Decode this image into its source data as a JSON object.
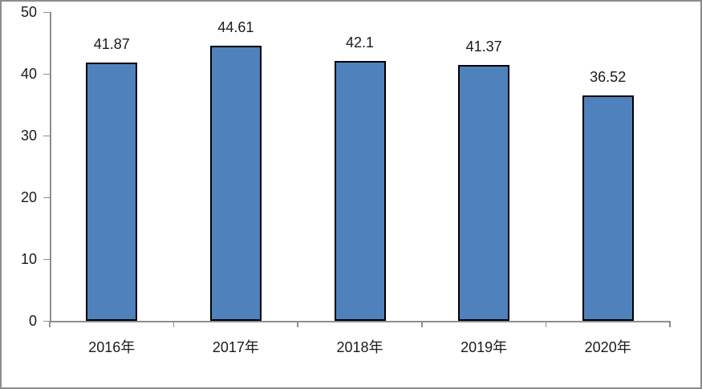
{
  "chart_data": {
    "type": "bar",
    "title": "",
    "xlabel": "",
    "ylabel": "",
    "categories": [
      "2016年",
      "2017年",
      "2018年",
      "2019年",
      "2020年"
    ],
    "values": [
      41.87,
      44.61,
      42.1,
      41.37,
      36.52
    ],
    "value_labels": [
      "41.87",
      "44.61",
      "42.1",
      "41.37",
      "36.52"
    ],
    "ylim": [
      0,
      50
    ],
    "yticks": [
      0,
      10,
      20,
      30,
      40,
      50
    ],
    "ytick_labels": [
      "0",
      "10",
      "20",
      "30",
      "40",
      "50"
    ],
    "grid": false,
    "legend_position": "none",
    "colors": {
      "bar_fill": "#4f81bd",
      "bar_border": "#000000",
      "axis": "#8e8e8e",
      "text": "#1a1a1a",
      "chart_border": "#8c8c8c",
      "background": "#ffffff"
    }
  }
}
